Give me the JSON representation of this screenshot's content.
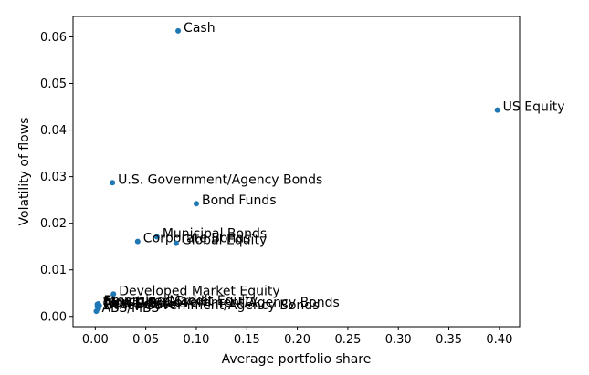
{
  "chart_data": {
    "type": "scatter",
    "xlabel": "Average portfolio share",
    "ylabel": "Volatility of flows",
    "xlim": [
      -0.022,
      0.42
    ],
    "ylim": [
      -0.0022,
      0.0644
    ],
    "x_ticks": [
      0.0,
      0.05,
      0.1,
      0.15,
      0.2,
      0.25,
      0.3,
      0.35,
      0.4
    ],
    "x_tick_labels": [
      "0.00",
      "0.05",
      "0.10",
      "0.15",
      "0.20",
      "0.25",
      "0.30",
      "0.35",
      "0.40"
    ],
    "y_ticks": [
      0.0,
      0.01,
      0.02,
      0.03,
      0.04,
      0.05,
      0.06
    ],
    "y_tick_labels": [
      "0.00",
      "0.01",
      "0.02",
      "0.03",
      "0.04",
      "0.05",
      "0.06"
    ],
    "grid": false,
    "marker_color": "#1f77b4",
    "points": [
      {
        "label": "Cash",
        "x": 0.082,
        "y": 0.0613
      },
      {
        "label": "US Equity",
        "x": 0.398,
        "y": 0.0443
      },
      {
        "label": "U.S. Government/Agency Bonds",
        "x": 0.017,
        "y": 0.0287
      },
      {
        "label": "Bond Funds",
        "x": 0.1,
        "y": 0.0242
      },
      {
        "label": "Municipal Bonds",
        "x": 0.061,
        "y": 0.0171
      },
      {
        "label": "Corporate Bonds",
        "x": 0.042,
        "y": 0.0161
      },
      {
        "label": "Global Equity",
        "x": 0.08,
        "y": 0.0157
      },
      {
        "label": "Developed Market Equity",
        "x": 0.018,
        "y": 0.0048
      },
      {
        "label": "Emerging Market Equity",
        "x": 0.003,
        "y": 0.0027
      },
      {
        "label": "Structured Credit",
        "x": 0.002,
        "y": 0.0026
      },
      {
        "label": "Non-U.S. Government/Agency Bonds",
        "x": 0.004,
        "y": 0.0023
      },
      {
        "label": "Global Bonds",
        "x": 0.002,
        "y": 0.0021
      },
      {
        "label": "Real Estate",
        "x": 0.003,
        "y": 0.0019
      },
      {
        "label": "Other Government/Agency Bonds",
        "x": 0.003,
        "y": 0.0017
      },
      {
        "label": "ABS/MBS",
        "x": 0.001,
        "y": 0.0011
      }
    ]
  }
}
